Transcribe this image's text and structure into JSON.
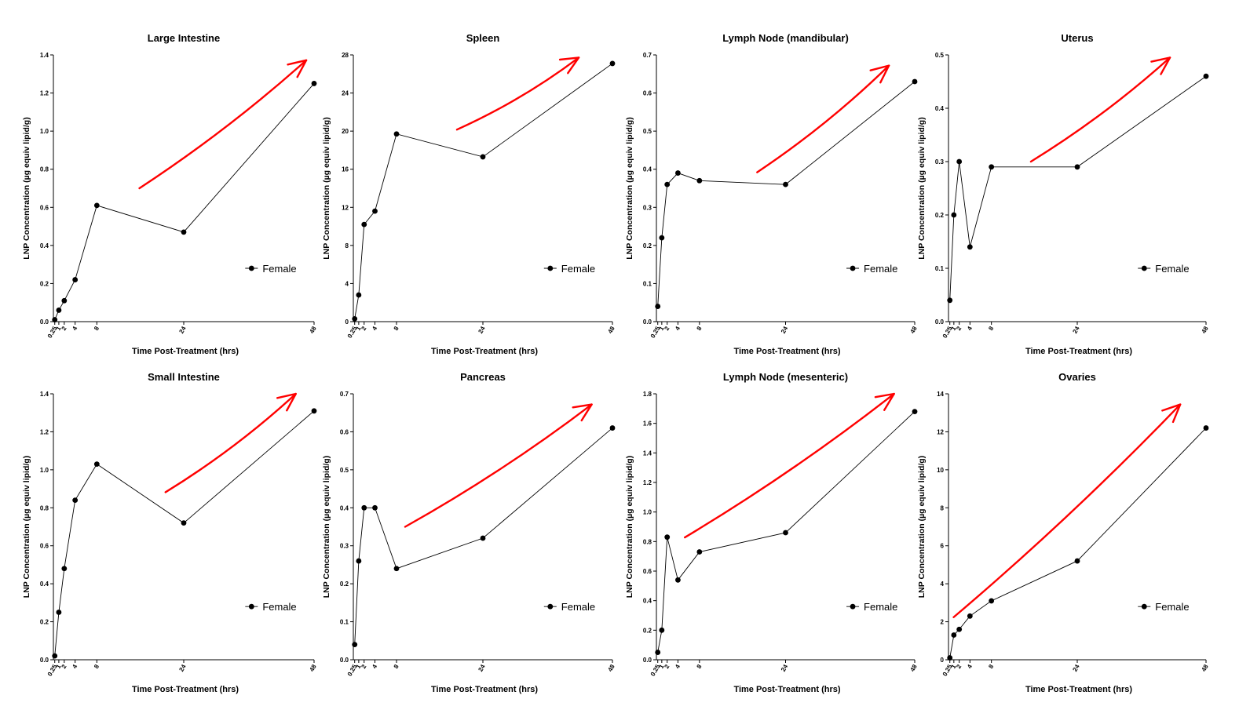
{
  "figure": {
    "ylabel": "LNP Concentration (µg equiv lipid/g)",
    "xlabel": "Time Post-Treatment (hrs)",
    "legend_label": "Female",
    "x_tick_labels": [
      "0.25",
      "1",
      "2",
      "4",
      "8",
      "24",
      "48"
    ],
    "colors": {
      "series": "#000000",
      "annotation_arrow": "#ff0000",
      "axis": "#000000"
    }
  },
  "chart_data": [
    {
      "type": "line",
      "title": "Large Intestine",
      "x": [
        0.25,
        1,
        2,
        4,
        8,
        24,
        48
      ],
      "series": [
        {
          "name": "Female",
          "values": [
            0.01,
            0.06,
            0.11,
            0.22,
            0.61,
            0.47,
            1.25
          ]
        }
      ],
      "ylim": [
        0,
        1.4
      ],
      "yticks": [
        "0.0",
        "0.2",
        "0.4",
        "0.6",
        "0.8",
        "1.0",
        "1.2",
        "1.4"
      ],
      "xlabel": "Time Post-Treatment (hrs)",
      "ylabel": "LNP Concentration (µg equiv lipid/g)",
      "legend_position": "lower-right",
      "annotation": "red upward arrow indicating increasing trend"
    },
    {
      "type": "line",
      "title": "Spleen",
      "x": [
        0.25,
        1,
        2,
        4,
        8,
        24,
        48
      ],
      "series": [
        {
          "name": "Female",
          "values": [
            0.3,
            2.8,
            10.2,
            11.6,
            19.7,
            17.3,
            27.1
          ]
        }
      ],
      "ylim": [
        0,
        28
      ],
      "yticks": [
        "0",
        "4",
        "8",
        "12",
        "16",
        "20",
        "24",
        "28"
      ],
      "xlabel": "Time Post-Treatment (hrs)",
      "ylabel": "LNP Concentration (µg equiv lipid/g)",
      "legend_position": "lower-right",
      "annotation": "red upward arrow indicating increasing trend"
    },
    {
      "type": "line",
      "title": "Lymph Node (mandibular)",
      "x": [
        0.25,
        1,
        2,
        4,
        8,
        24,
        48
      ],
      "series": [
        {
          "name": "Female",
          "values": [
            0.04,
            0.22,
            0.36,
            0.39,
            0.37,
            0.36,
            0.63
          ]
        }
      ],
      "ylim": [
        0,
        0.7
      ],
      "yticks": [
        "0.0",
        "0.1",
        "0.2",
        "0.3",
        "0.4",
        "0.5",
        "0.6",
        "0.7"
      ],
      "xlabel": "Time Post-Treatment (hrs)",
      "ylabel": "LNP Concentration (µg equiv lipid/g)",
      "legend_position": "lower-right",
      "annotation": "red upward arrow indicating increasing trend"
    },
    {
      "type": "line",
      "title": "Uterus",
      "x": [
        0.25,
        1,
        2,
        4,
        8,
        24,
        48
      ],
      "series": [
        {
          "name": "Female",
          "values": [
            0.04,
            0.2,
            0.3,
            0.14,
            0.29,
            0.29,
            0.46
          ]
        }
      ],
      "ylim": [
        0,
        0.5
      ],
      "yticks": [
        "0.0",
        "0.1",
        "0.2",
        "0.3",
        "0.4",
        "0.5"
      ],
      "xlabel": "Time Post-Treatment (hrs)",
      "ylabel": "LNP Concentration (µg equiv lipid/g)",
      "legend_position": "lower-right",
      "annotation": "red upward arrow indicating increasing trend"
    },
    {
      "type": "line",
      "title": "Small Intestine",
      "x": [
        0.25,
        1,
        2,
        4,
        8,
        24,
        48
      ],
      "series": [
        {
          "name": "Female",
          "values": [
            0.02,
            0.25,
            0.48,
            0.84,
            1.03,
            0.72,
            1.31
          ]
        }
      ],
      "ylim": [
        0,
        1.4
      ],
      "yticks": [
        "0.0",
        "0.2",
        "0.4",
        "0.6",
        "0.8",
        "1.0",
        "1.2",
        "1.4"
      ],
      "xlabel": "Time Post-Treatment (hrs)",
      "ylabel": "LNP Concentration (µg equiv lipid/g)",
      "legend_position": "lower-right",
      "annotation": "red upward arrow indicating increasing trend"
    },
    {
      "type": "line",
      "title": "Pancreas",
      "x": [
        0.25,
        1,
        2,
        4,
        8,
        24,
        48
      ],
      "series": [
        {
          "name": "Female",
          "values": [
            0.04,
            0.26,
            0.4,
            0.4,
            0.24,
            0.32,
            0.61
          ]
        }
      ],
      "ylim": [
        0,
        0.7
      ],
      "yticks": [
        "0.0",
        "0.1",
        "0.2",
        "0.3",
        "0.4",
        "0.5",
        "0.6",
        "0.7"
      ],
      "xlabel": "Time Post-Treatment (hrs)",
      "ylabel": "LNP Concentration (µg equiv lipid/g)",
      "legend_position": "lower-right",
      "annotation": "red upward arrow indicating increasing trend"
    },
    {
      "type": "line",
      "title": "Lymph Node (mesenteric)",
      "x": [
        0.25,
        1,
        2,
        4,
        8,
        24,
        48
      ],
      "series": [
        {
          "name": "Female",
          "values": [
            0.05,
            0.2,
            0.83,
            0.54,
            0.73,
            0.86,
            1.68
          ]
        }
      ],
      "ylim": [
        0,
        1.8
      ],
      "yticks": [
        "0.0",
        "0.2",
        "0.4",
        "0.6",
        "0.8",
        "1.0",
        "1.2",
        "1.4",
        "1.6",
        "1.8"
      ],
      "xlabel": "Time Post-Treatment (hrs)",
      "ylabel": "LNP Concentration (µg equiv lipid/g)",
      "legend_position": "lower-right",
      "annotation": "red upward arrow indicating increasing trend"
    },
    {
      "type": "line",
      "title": "Ovaries",
      "x": [
        0.25,
        1,
        2,
        4,
        8,
        24,
        48
      ],
      "series": [
        {
          "name": "Female",
          "values": [
            0.1,
            1.3,
            1.6,
            2.3,
            3.1,
            5.2,
            12.2
          ]
        }
      ],
      "ylim": [
        0,
        14
      ],
      "yticks": [
        "0",
        "2",
        "4",
        "6",
        "8",
        "10",
        "12",
        "14"
      ],
      "xlabel": "Time Post-Treatment (hrs)",
      "ylabel": "LNP Concentration (µg equiv lipid/g)",
      "legend_position": "lower-right",
      "annotation": "red upward arrow indicating increasing trend"
    }
  ]
}
